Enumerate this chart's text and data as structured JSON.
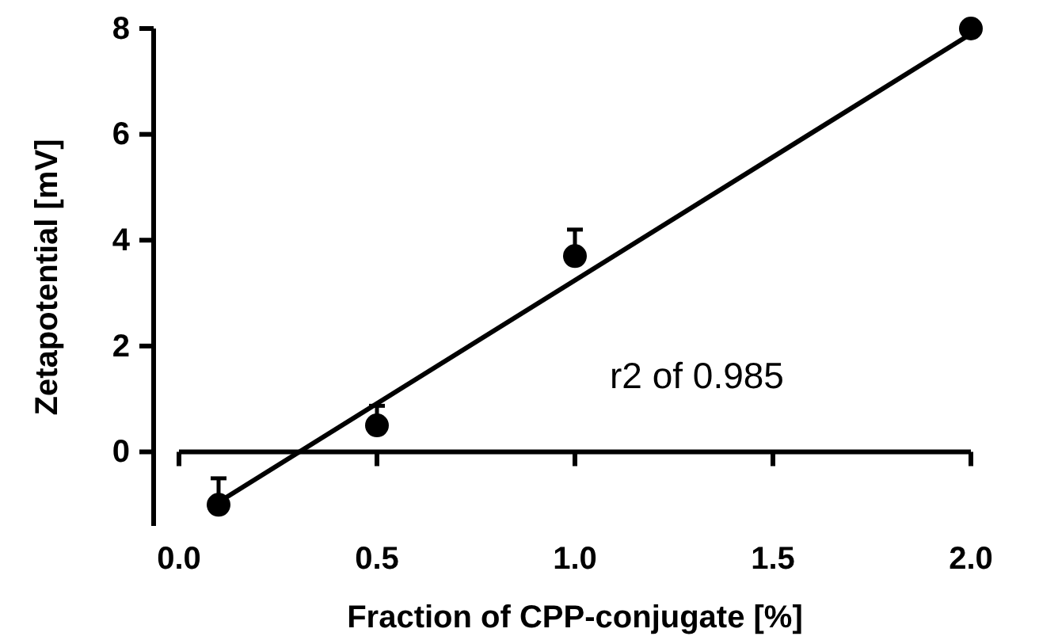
{
  "chart_data": {
    "type": "scatter",
    "xlabel": "Fraction of CPP-conjugate [%]",
    "ylabel": "Zetapotential [mV]",
    "xlim": [
      0,
      2.0
    ],
    "xticks": [
      {
        "value": 0,
        "label": "0.0"
      },
      {
        "value": 0.5,
        "label": "0.5"
      },
      {
        "value": 1,
        "label": "1.0"
      },
      {
        "value": 1.5,
        "label": "1.5"
      },
      {
        "value": 2,
        "label": "2.0"
      }
    ],
    "ylim": [
      -1.4,
      8
    ],
    "yticks": [
      0,
      2,
      4,
      6,
      8
    ],
    "annotations": [
      "r2 of 0.985"
    ],
    "series": [
      {
        "color": "#000000",
        "marker": "circle",
        "x": [
          0.1,
          0.5,
          1.0,
          2.0
        ],
        "values": [
          -1.0,
          0.5,
          3.7,
          8.0
        ],
        "errors": [
          [
            -1.0,
            -0.5
          ],
          [
            0.5,
            0.87
          ],
          [
            3.7,
            4.2
          ],
          null
        ]
      },
      {
        "type": "line",
        "color": "#000000",
        "marker": "none",
        "line_style": "solid",
        "x": [
          0.1,
          2.0
        ],
        "values": [
          -0.95,
          7.9
        ]
      }
    ]
  }
}
